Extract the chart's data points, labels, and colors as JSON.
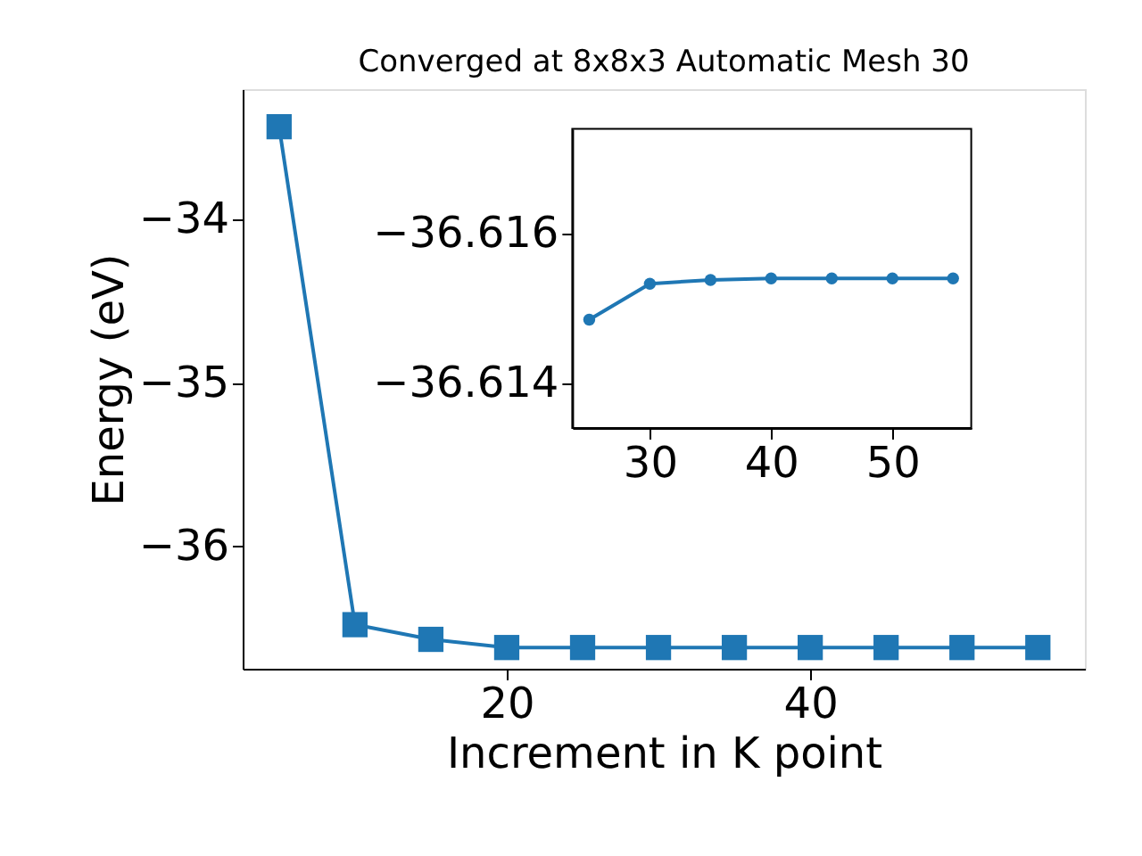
{
  "chart_data": [
    {
      "type": "line",
      "title": "Converged at 8x8x3 Automatic Mesh 30",
      "xlabel": "Increment in K point",
      "ylabel": "Energy (eV)",
      "x": [
        5,
        10,
        15,
        20,
        25,
        30,
        35,
        40,
        45,
        50,
        55
      ],
      "series": [
        {
          "color": "#1f77b4",
          "values": [
            -33.43,
            -36.48,
            -36.57,
            -36.62,
            -36.62,
            -36.62,
            -36.62,
            -36.62,
            -36.62,
            -36.62,
            -36.62
          ]
        }
      ],
      "xlim": [
        2.6,
        58.1
      ],
      "ylim": [
        -36.75,
        -33.2
      ],
      "xticks": [
        20,
        40
      ],
      "yticks": [
        -36,
        -35,
        -34
      ],
      "grid": false,
      "marker": "square",
      "line_style": "solid"
    },
    {
      "type": "line",
      "x": [
        25,
        30,
        35,
        40,
        45,
        50,
        55
      ],
      "series": [
        {
          "color": "#1f77b4",
          "values": [
            -36.61485,
            -36.61533,
            -36.61538,
            -36.6154,
            -36.6154,
            -36.6154,
            -36.6154
          ]
        }
      ],
      "xlim": [
        23.6,
        56.5
      ],
      "ylim": [
        -36.6134,
        -36.6174
      ],
      "xticks": [
        30,
        40,
        50
      ],
      "yticks": [
        -36.616,
        -36.614
      ],
      "grid": false,
      "marker": "circle",
      "line_style": "solid"
    }
  ]
}
